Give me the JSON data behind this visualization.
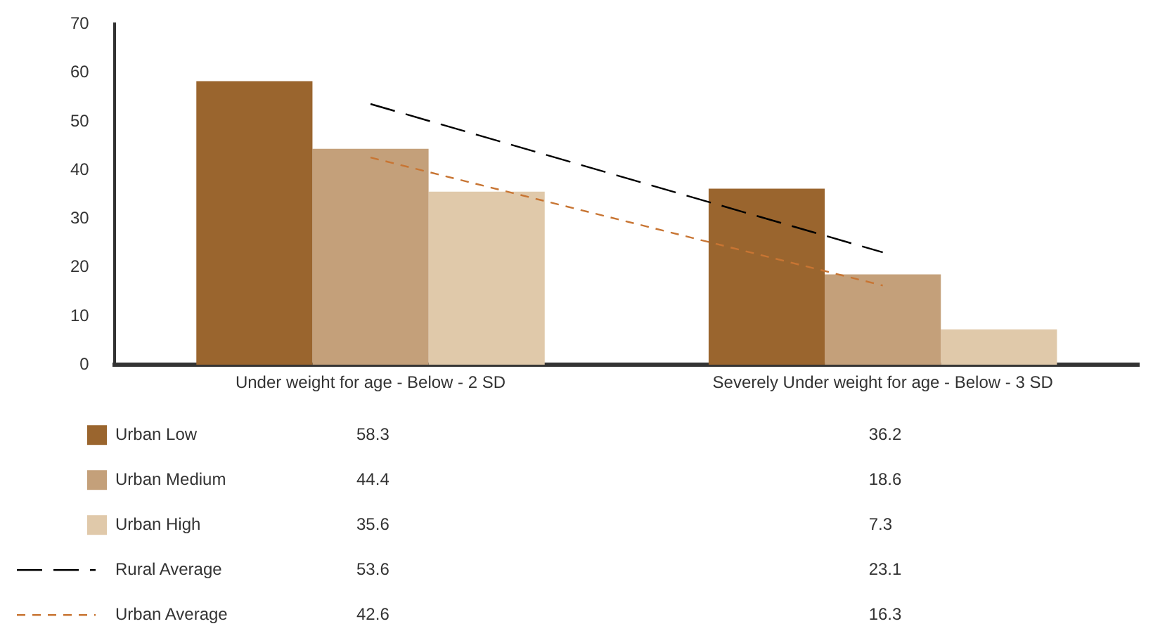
{
  "chart_data": {
    "type": "bar",
    "categories": [
      "Under weight for age - Below - 2 SD",
      "Severely Under weight for age - Below - 3 SD"
    ],
    "series": [
      {
        "name": "Urban Low",
        "color": "#9a652e",
        "values": [
          58.3,
          36.2
        ]
      },
      {
        "name": "Urban Medium",
        "color": "#c4a07a",
        "values": [
          44.4,
          18.6
        ]
      },
      {
        "name": "Urban High",
        "color": "#e0c9aa",
        "values": [
          35.6,
          7.3
        ]
      },
      {
        "name": "Rural Average",
        "type": "line",
        "line_style": "dashed",
        "color": "#000000",
        "values": [
          53.6,
          23.1
        ]
      },
      {
        "name": "Urban Average",
        "type": "line",
        "line_style": "dotted",
        "color": "#c87533",
        "values": [
          42.6,
          16.3
        ]
      }
    ],
    "ylim": [
      0,
      70
    ],
    "yticks": [
      0,
      10,
      20,
      30,
      40,
      50,
      60,
      70
    ],
    "grid": false,
    "legend": "bottom",
    "data_labels": true
  }
}
